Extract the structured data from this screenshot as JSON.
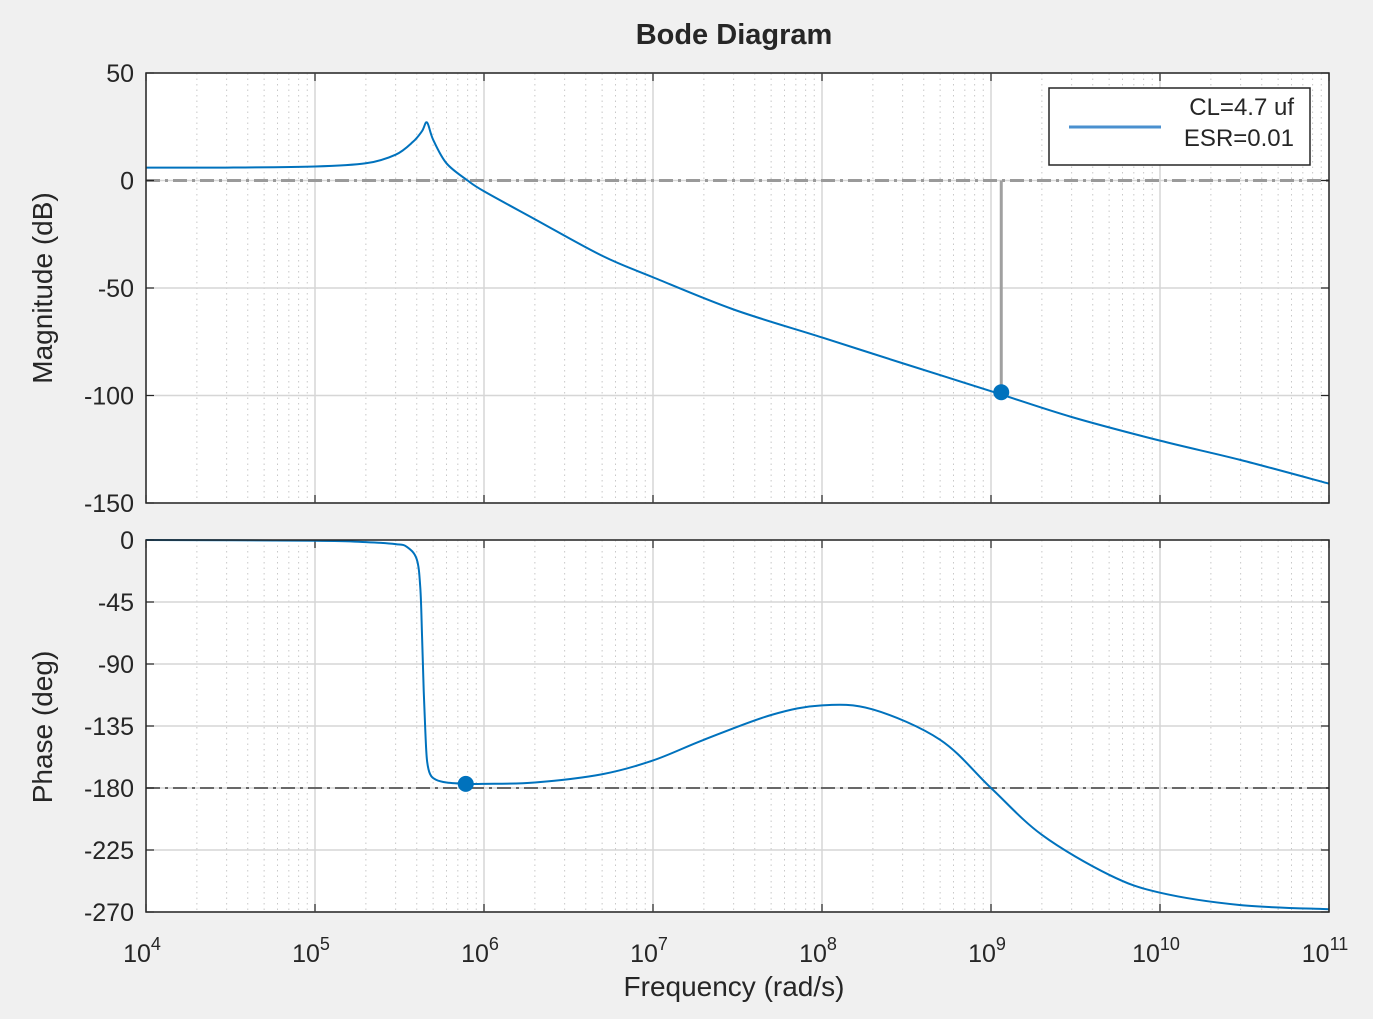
{
  "chart_data": {
    "type": "line",
    "title": "Bode Diagram",
    "xlabel": "Frequency  (rad/s)",
    "x_scale": "log",
    "xlim": [
      10000,
      100000000000
    ],
    "x_tick_exponents": [
      "4",
      "5",
      "6",
      "7",
      "8",
      "9",
      "10",
      "11"
    ],
    "x_tick_base": "10",
    "grid": true,
    "colors": {
      "series": "#0072bd",
      "reference": "#7f7f7f",
      "marker": "#0072bd",
      "background": "#f0f0f0",
      "plot_bg": "#ffffff"
    },
    "legend": {
      "location": "top-right",
      "entries": [
        "CL=4.7 uf",
        "ESR=0.01"
      ]
    },
    "magnitude": {
      "ylabel": "Magnitude (dB)",
      "ylim": [
        -150,
        50
      ],
      "yticks": [
        50,
        0,
        -50,
        -100,
        -150
      ],
      "ytick_labels": [
        "50",
        "0",
        "-50",
        "-100",
        "-150"
      ],
      "series": {
        "name": "CL=4.7 uf ESR=0.01",
        "x": [
          10000,
          30000,
          100000,
          200000,
          300000,
          380000,
          430000,
          460000,
          500000,
          600000,
          800000,
          1000000,
          2000000,
          5000000,
          10000000,
          30000000,
          100000000,
          300000000,
          1000000000,
          3000000000,
          10000000000,
          30000000000,
          100000000000
        ],
        "y": [
          6,
          6,
          6.5,
          8,
          12,
          18,
          23,
          27,
          19,
          8,
          0,
          -5,
          -18,
          -35,
          -45,
          -60,
          -73,
          -85,
          -98,
          -110,
          -121,
          -130,
          -141
        ]
      },
      "reference_line": {
        "y": 0
      },
      "marker": {
        "x": 1150000000,
        "y": -98.5
      },
      "marker_drop_from": 0
    },
    "phase": {
      "ylabel": "Phase (deg)",
      "ylim": [
        -270,
        0
      ],
      "yticks": [
        0,
        -45,
        -90,
        -135,
        -180,
        -225,
        -270
      ],
      "ytick_labels": [
        "0",
        "-45",
        "-90",
        "-135",
        "-180",
        "-225",
        "-270"
      ],
      "series": {
        "name": "CL=4.7 uf ESR=0.01",
        "x": [
          10000,
          100000,
          200000,
          300000,
          350000,
          400000,
          420000,
          430000,
          440000,
          450000,
          460000,
          480000,
          520000,
          600000,
          800000,
          1000000,
          2000000,
          5000000,
          10000000,
          20000000,
          50000000,
          100000000,
          200000000,
          500000000,
          1000000000,
          2000000000,
          5000000000,
          10000000000,
          30000000000,
          100000000000
        ],
        "y": [
          0,
          -0.5,
          -1.5,
          -3,
          -5,
          -14,
          -35,
          -70,
          -110,
          -140,
          -160,
          -170,
          -174,
          -176,
          -177,
          -177,
          -176,
          -170,
          -160,
          -145,
          -127,
          -120,
          -123,
          -145,
          -180,
          -214,
          -243,
          -256,
          -265,
          -268
        ]
      },
      "reference_line": {
        "y": -180
      },
      "marker": {
        "x": 780000,
        "y": -177
      }
    }
  }
}
